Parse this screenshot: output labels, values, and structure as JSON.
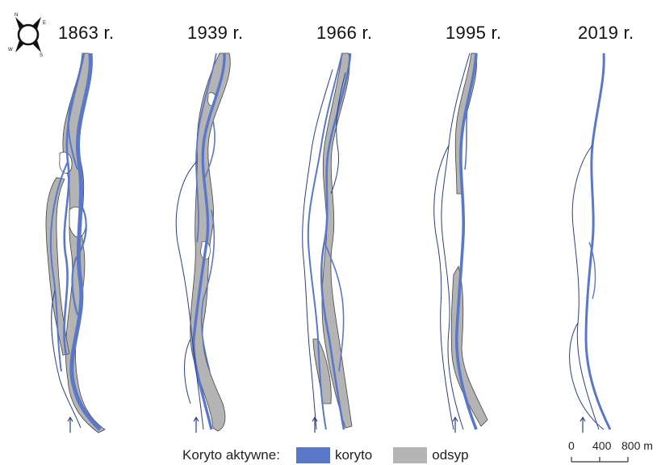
{
  "years": [
    "1863 r.",
    "1939 r.",
    "1966 r.",
    "1995 r.",
    "2019 r."
  ],
  "compass": {
    "n": "N",
    "e": "E",
    "s": "S",
    "w": "W"
  },
  "legend": {
    "title": "Koryto aktywne:",
    "channel_label": "koryto",
    "bar_label": "odsyp",
    "channel_color": "#5b78c8",
    "bar_color": "#b4b4b4"
  },
  "scale": {
    "ticks": [
      "0",
      "400",
      "800 m"
    ]
  },
  "flow_direction": "arrow-up-icon"
}
